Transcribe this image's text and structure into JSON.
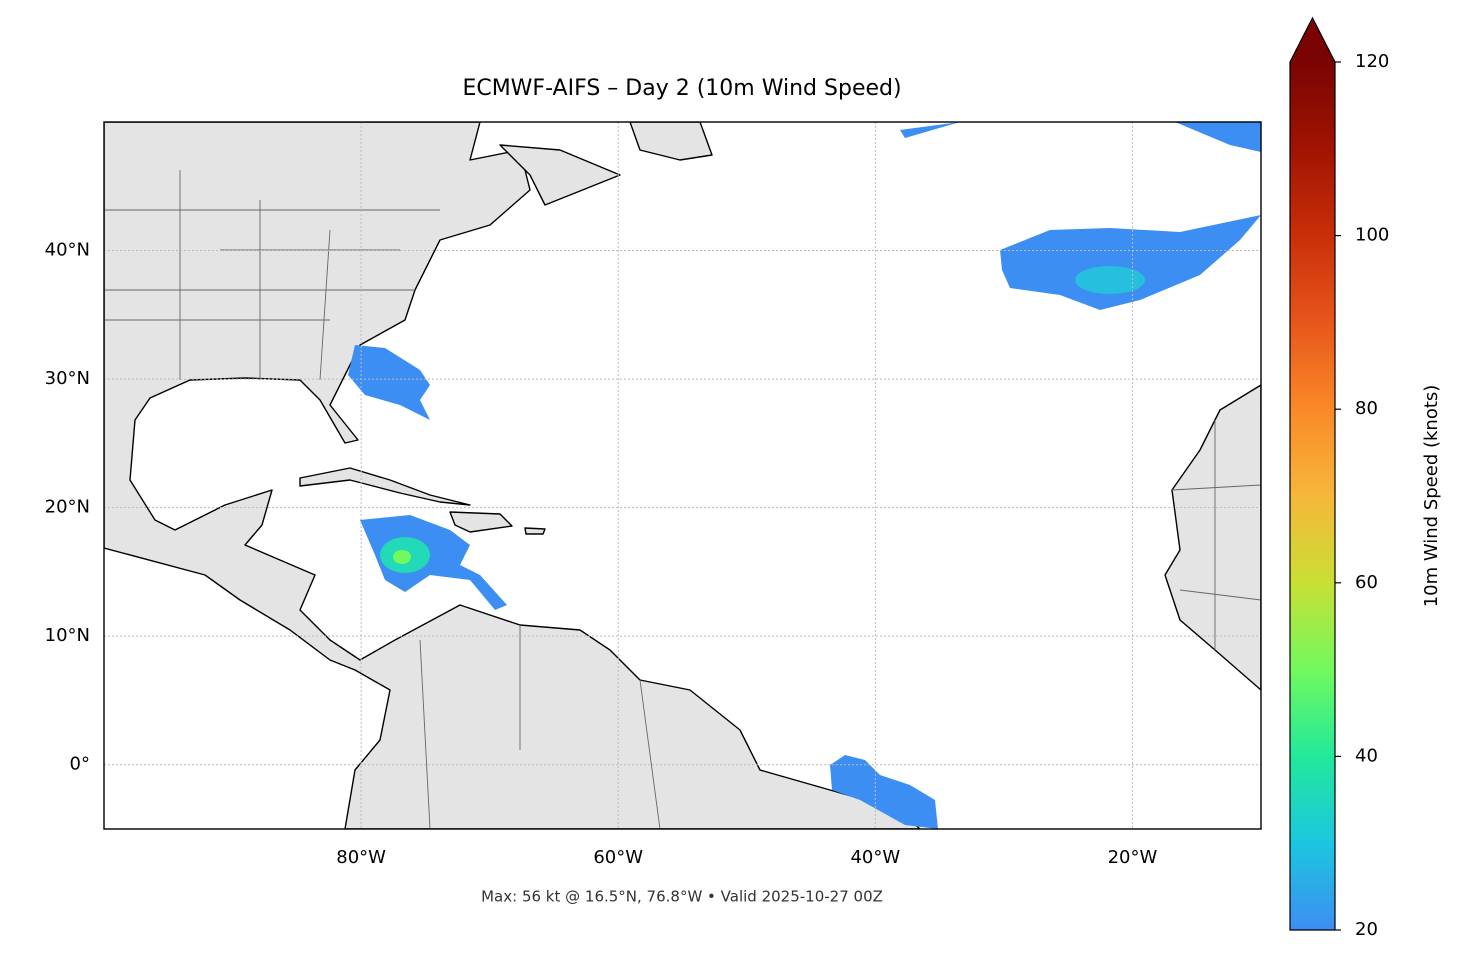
{
  "chart_data": {
    "type": "map",
    "title": "ECMWF-AIFS – Day 2 (10m Wind Speed)",
    "footer": "Max: 56 kt @ 16.5°N, 76.8°W • Valid 2025-10-27 00Z",
    "xlim": [
      -100,
      -10
    ],
    "ylim": [
      -5,
      50
    ],
    "xticks": [
      {
        "value": -80,
        "label": "80°W"
      },
      {
        "value": -60,
        "label": "60°W"
      },
      {
        "value": -40,
        "label": "40°W"
      },
      {
        "value": -20,
        "label": "20°W"
      }
    ],
    "yticks": [
      {
        "value": 0,
        "label": "0°"
      },
      {
        "value": 10,
        "label": "10°N"
      },
      {
        "value": 20,
        "label": "20°N"
      },
      {
        "value": 30,
        "label": "30°N"
      },
      {
        "value": 40,
        "label": "40°N"
      }
    ],
    "grid": true,
    "colorbar": {
      "label": "10m Wind Speed (knots)",
      "lim": [
        20,
        120
      ],
      "ticks": [
        20,
        40,
        60,
        80,
        100,
        120
      ],
      "colors": [
        "#3d8ef2",
        "#1cc6df",
        "#22e99b",
        "#72f95e",
        "#c9df34",
        "#f6b73a",
        "#fa8927",
        "#e7561b",
        "#c92f09",
        "#a01402",
        "#7a0403"
      ],
      "extend": "max"
    }
  }
}
